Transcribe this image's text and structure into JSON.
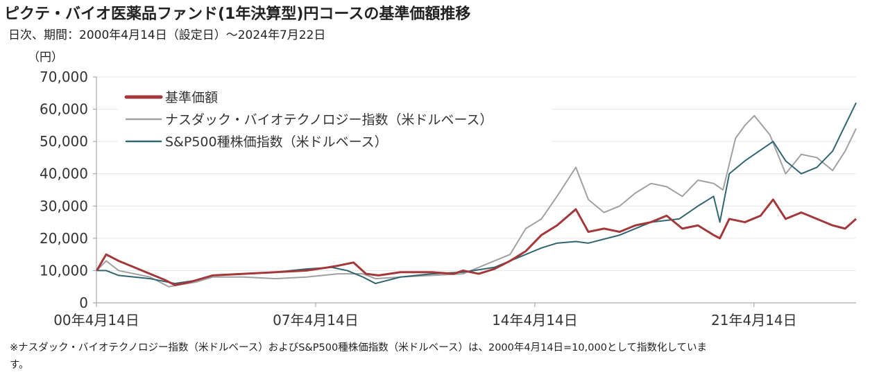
{
  "title": "ピクテ・バイオ医薬品ファンド(1年決算型)円コースの基準価額推移",
  "subtitle": "日次、期間：2000年4月14日（設定日）～2024年7月22日",
  "note_line1": "※ナスダック・バイオテクノロジー指数（米ドルベース）およびS&P500種株価指数（米ドルベース）は、2000年4月14日=10,000として指数化していま",
  "note_line2": "す。",
  "chart_data": {
    "type": "line",
    "title": "ピクテ・バイオ医薬品ファンド(1年決算型)円コースの基準価額推移",
    "ylabel": "（円）",
    "ylim": [
      0,
      70000
    ],
    "xlim": [
      2000.29,
      2024.55
    ],
    "yticks": [
      0,
      10000,
      20000,
      30000,
      40000,
      50000,
      60000,
      70000
    ],
    "ytick_labels": [
      "0",
      "10,000",
      "20,000",
      "30,000",
      "40,000",
      "50,000",
      "60,000",
      "70,000"
    ],
    "xticks": [
      2000.29,
      2007.29,
      2014.29,
      2021.29
    ],
    "xtick_labels": [
      "00年4月14日",
      "07年4月14日",
      "14年4月14日",
      "21年4月14日"
    ],
    "grid": true,
    "legend": "top-left",
    "series": [
      {
        "name": "基準価額",
        "color": "#a4373a",
        "width": 3,
        "x": [
          2000.3,
          2000.6,
          2001,
          2001.5,
          2002,
          2002.5,
          2002.8,
          2003.3,
          2004,
          2005,
          2006,
          2007,
          2007.7,
          2008,
          2008.5,
          2008.9,
          2009.3,
          2010,
          2011,
          2011.7,
          2012,
          2012.5,
          2013,
          2013.5,
          2014,
          2014.5,
          2015,
          2015.6,
          2016,
          2016.5,
          2017,
          2017.5,
          2018,
          2018.5,
          2019,
          2019.5,
          2020,
          2020.2,
          2020.5,
          2021,
          2021.5,
          2021.9,
          2022.3,
          2022.8,
          2023.3,
          2023.8,
          2024.2,
          2024.55
        ],
        "y": [
          10000,
          15000,
          13000,
          11000,
          9000,
          7000,
          5500,
          6500,
          8500,
          9000,
          9500,
          10000,
          11000,
          11500,
          12500,
          9000,
          8500,
          9500,
          9500,
          9000,
          10000,
          9000,
          10500,
          13000,
          16000,
          21000,
          24000,
          29000,
          22000,
          23000,
          22000,
          24000,
          25000,
          27000,
          23000,
          24000,
          21000,
          20000,
          26000,
          25000,
          27000,
          32000,
          26000,
          28000,
          26000,
          24000,
          23000,
          26000
        ]
      },
      {
        "name": "ナスダック・バイオテクノロジー指数（米ドルベース）",
        "color": "#a0a0a0",
        "width": 2,
        "x": [
          2000.3,
          2000.6,
          2001,
          2002,
          2002.6,
          2003.5,
          2004,
          2005,
          2006,
          2007,
          2008,
          2008.8,
          2009.2,
          2010,
          2011,
          2012,
          2013,
          2013.5,
          2014,
          2014.5,
          2015,
          2015.6,
          2016,
          2016.5,
          2017,
          2017.5,
          2018,
          2018.5,
          2019,
          2019.5,
          2020,
          2020.3,
          2020.7,
          2021,
          2021.3,
          2021.8,
          2022.3,
          2022.8,
          2023.3,
          2023.8,
          2024.2,
          2024.55
        ],
        "y": [
          10000,
          13000,
          10000,
          8000,
          5000,
          6500,
          8000,
          8000,
          7500,
          8000,
          9000,
          9000,
          7500,
          8000,
          8500,
          9000,
          13000,
          15000,
          23000,
          26000,
          33000,
          42000,
          32000,
          28000,
          30000,
          34000,
          37000,
          36000,
          33000,
          38000,
          37000,
          35000,
          51000,
          55000,
          58000,
          52000,
          40000,
          46000,
          45000,
          41000,
          47000,
          54000
        ]
      },
      {
        "name": "S&P500種株価指数（米ドルベース）",
        "color": "#2f6470",
        "width": 2,
        "x": [
          2000.3,
          2000.6,
          2001,
          2002,
          2002.8,
          2003.5,
          2004,
          2005,
          2006,
          2007,
          2007.8,
          2008.3,
          2008.8,
          2009.2,
          2010,
          2011,
          2012,
          2013,
          2014,
          2014.5,
          2015,
          2015.6,
          2016,
          2017,
          2018,
          2018.9,
          2019.5,
          2020,
          2020.2,
          2020.5,
          2021,
          2021.9,
          2022.3,
          2022.8,
          2023.3,
          2023.8,
          2024.2,
          2024.55
        ],
        "y": [
          10000,
          10000,
          8500,
          7500,
          6000,
          7000,
          8500,
          9000,
          9500,
          10500,
          11000,
          10000,
          8000,
          6000,
          8000,
          9000,
          9500,
          11000,
          15000,
          17000,
          18500,
          19000,
          18500,
          21000,
          25000,
          26000,
          30000,
          33000,
          25000,
          40000,
          44000,
          50000,
          44000,
          40000,
          42000,
          47000,
          55000,
          62000
        ]
      }
    ]
  }
}
